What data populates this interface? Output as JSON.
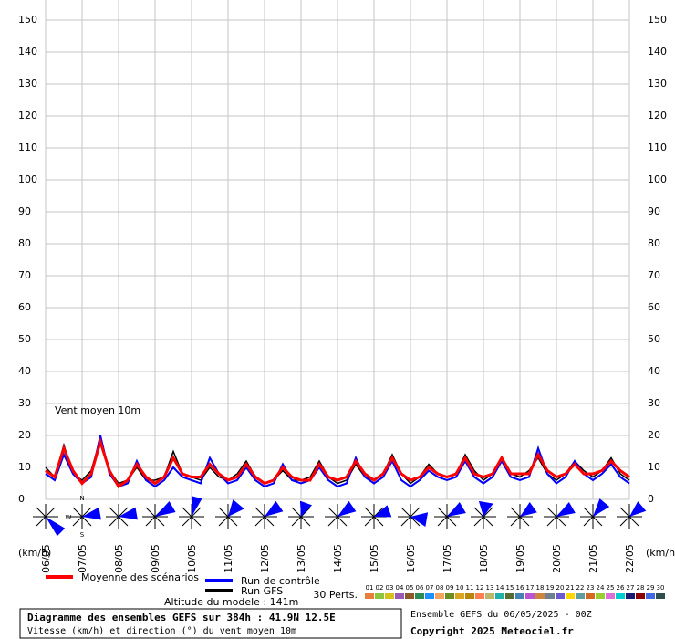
{
  "chart_data": {
    "type": "line",
    "y_label": "Vent moyen 10m",
    "unit_label": "(km/h)",
    "xlim": [
      0,
      384
    ],
    "xticks": [
      {
        "value": 0,
        "label": "06/05"
      },
      {
        "value": 24,
        "label": "07/05"
      },
      {
        "value": 48,
        "label": "08/05"
      },
      {
        "value": 72,
        "label": "09/05"
      },
      {
        "value": 96,
        "label": "10/05"
      },
      {
        "value": 120,
        "label": "11/05"
      },
      {
        "value": 144,
        "label": "12/05"
      },
      {
        "value": 168,
        "label": "13/05"
      },
      {
        "value": 192,
        "label": "14/05"
      },
      {
        "value": 216,
        "label": "15/05"
      },
      {
        "value": 240,
        "label": "16/05"
      },
      {
        "value": 264,
        "label": "17/05"
      },
      {
        "value": 288,
        "label": "18/05"
      },
      {
        "value": 312,
        "label": "19/05"
      },
      {
        "value": 336,
        "label": "20/05"
      },
      {
        "value": 360,
        "label": "21/05"
      },
      {
        "value": 384,
        "label": "22/05"
      }
    ],
    "ylim": [
      0,
      150
    ],
    "yticks": [
      0,
      10,
      20,
      30,
      40,
      50,
      60,
      70,
      80,
      90,
      100,
      110,
      120,
      130,
      140,
      150
    ],
    "grid": true,
    "x": [
      0,
      6,
      12,
      18,
      24,
      30,
      36,
      42,
      48,
      54,
      60,
      66,
      72,
      78,
      84,
      90,
      96,
      102,
      108,
      114,
      120,
      126,
      132,
      138,
      144,
      150,
      156,
      162,
      168,
      174,
      180,
      186,
      192,
      198,
      204,
      210,
      216,
      222,
      228,
      234,
      240,
      246,
      252,
      258,
      264,
      270,
      276,
      282,
      288,
      294,
      300,
      306,
      312,
      318,
      324,
      330,
      336,
      342,
      348,
      354,
      360,
      366,
      372,
      378,
      384
    ],
    "series": [
      {
        "name": "Run GFS",
        "color": "#000000",
        "values": [
          10,
          7,
          17,
          8,
          6,
          9,
          19,
          9,
          5,
          6,
          10,
          6,
          6,
          7,
          15,
          8,
          7,
          6,
          10,
          7,
          6,
          8,
          12,
          7,
          5,
          6,
          9,
          6,
          6,
          7,
          12,
          7,
          5,
          6,
          11,
          7,
          6,
          8,
          14,
          8,
          5,
          7,
          11,
          8,
          7,
          8,
          14,
          9,
          6,
          8,
          12,
          8,
          7,
          9,
          13,
          8,
          6,
          8,
          12,
          9,
          7,
          9,
          13,
          8,
          6
        ]
      },
      {
        "name": "Run de contrôle",
        "color": "#0000ff",
        "values": [
          8,
          6,
          14,
          8,
          5,
          7,
          20,
          8,
          4,
          5,
          12,
          6,
          4,
          6,
          10,
          7,
          6,
          5,
          13,
          8,
          5,
          6,
          10,
          6,
          4,
          5,
          11,
          6,
          5,
          6,
          10,
          6,
          4,
          5,
          13,
          7,
          5,
          7,
          12,
          6,
          4,
          6,
          9,
          7,
          6,
          7,
          12,
          7,
          5,
          7,
          12,
          7,
          6,
          7,
          16,
          8,
          5,
          7,
          12,
          8,
          6,
          8,
          11,
          7,
          5
        ]
      },
      {
        "name": "Moyenne des scénarios",
        "color": "#ff0000",
        "values": [
          9,
          7,
          16,
          9,
          5,
          8,
          18,
          9,
          4,
          6,
          11,
          7,
          5,
          7,
          13,
          8,
          7,
          7,
          11,
          8,
          6,
          7,
          11,
          7,
          5,
          6,
          10,
          7,
          6,
          6,
          11,
          7,
          6,
          7,
          12,
          8,
          6,
          8,
          13,
          8,
          6,
          7,
          10,
          8,
          7,
          8,
          13,
          8,
          7,
          8,
          13,
          8,
          8,
          8,
          14,
          9,
          7,
          8,
          11,
          8,
          8,
          9,
          12,
          9,
          7
        ]
      }
    ],
    "perturbations": {
      "title": "30 Perts.",
      "labels": [
        "01",
        "02",
        "03",
        "04",
        "05",
        "06",
        "07",
        "08",
        "09",
        "10",
        "11",
        "12",
        "13",
        "14",
        "15",
        "16",
        "17",
        "18",
        "19",
        "20",
        "21",
        "22",
        "23",
        "24",
        "25",
        "26",
        "27",
        "28",
        "29",
        "30"
      ],
      "colors": [
        "#e8803a",
        "#8cc63f",
        "#d4c21a",
        "#9b59b6",
        "#8b5a2b",
        "#2e8b57",
        "#1e90ff",
        "#f4a460",
        "#6b8e23",
        "#daa520",
        "#b8860b",
        "#ff7f50",
        "#bdb76b",
        "#20b2aa",
        "#556b2f",
        "#4682b4",
        "#ba55d3",
        "#cd853f",
        "#708090",
        "#6a5acd",
        "#ffd700",
        "#5f9ea0",
        "#d2691e",
        "#9acd32",
        "#da70d6",
        "#00ced1",
        "#191970",
        "#8b0000",
        "#4169e1",
        "#2f4f4f"
      ]
    },
    "altitude": "Altitude du modele : 141m",
    "title": "Diagramme des ensembles GEFS sur 384h : 41.9N 12.5E",
    "subtitle": "Vitesse (km/h) et direction (°) du vent moyen 10m",
    "run_info": "Ensemble GEFS du 06/05/2025 - 00Z",
    "copyright": "Copyright 2025 Meteociel.fr",
    "compass": {
      "n": "N",
      "w": "W",
      "s": "S"
    }
  }
}
